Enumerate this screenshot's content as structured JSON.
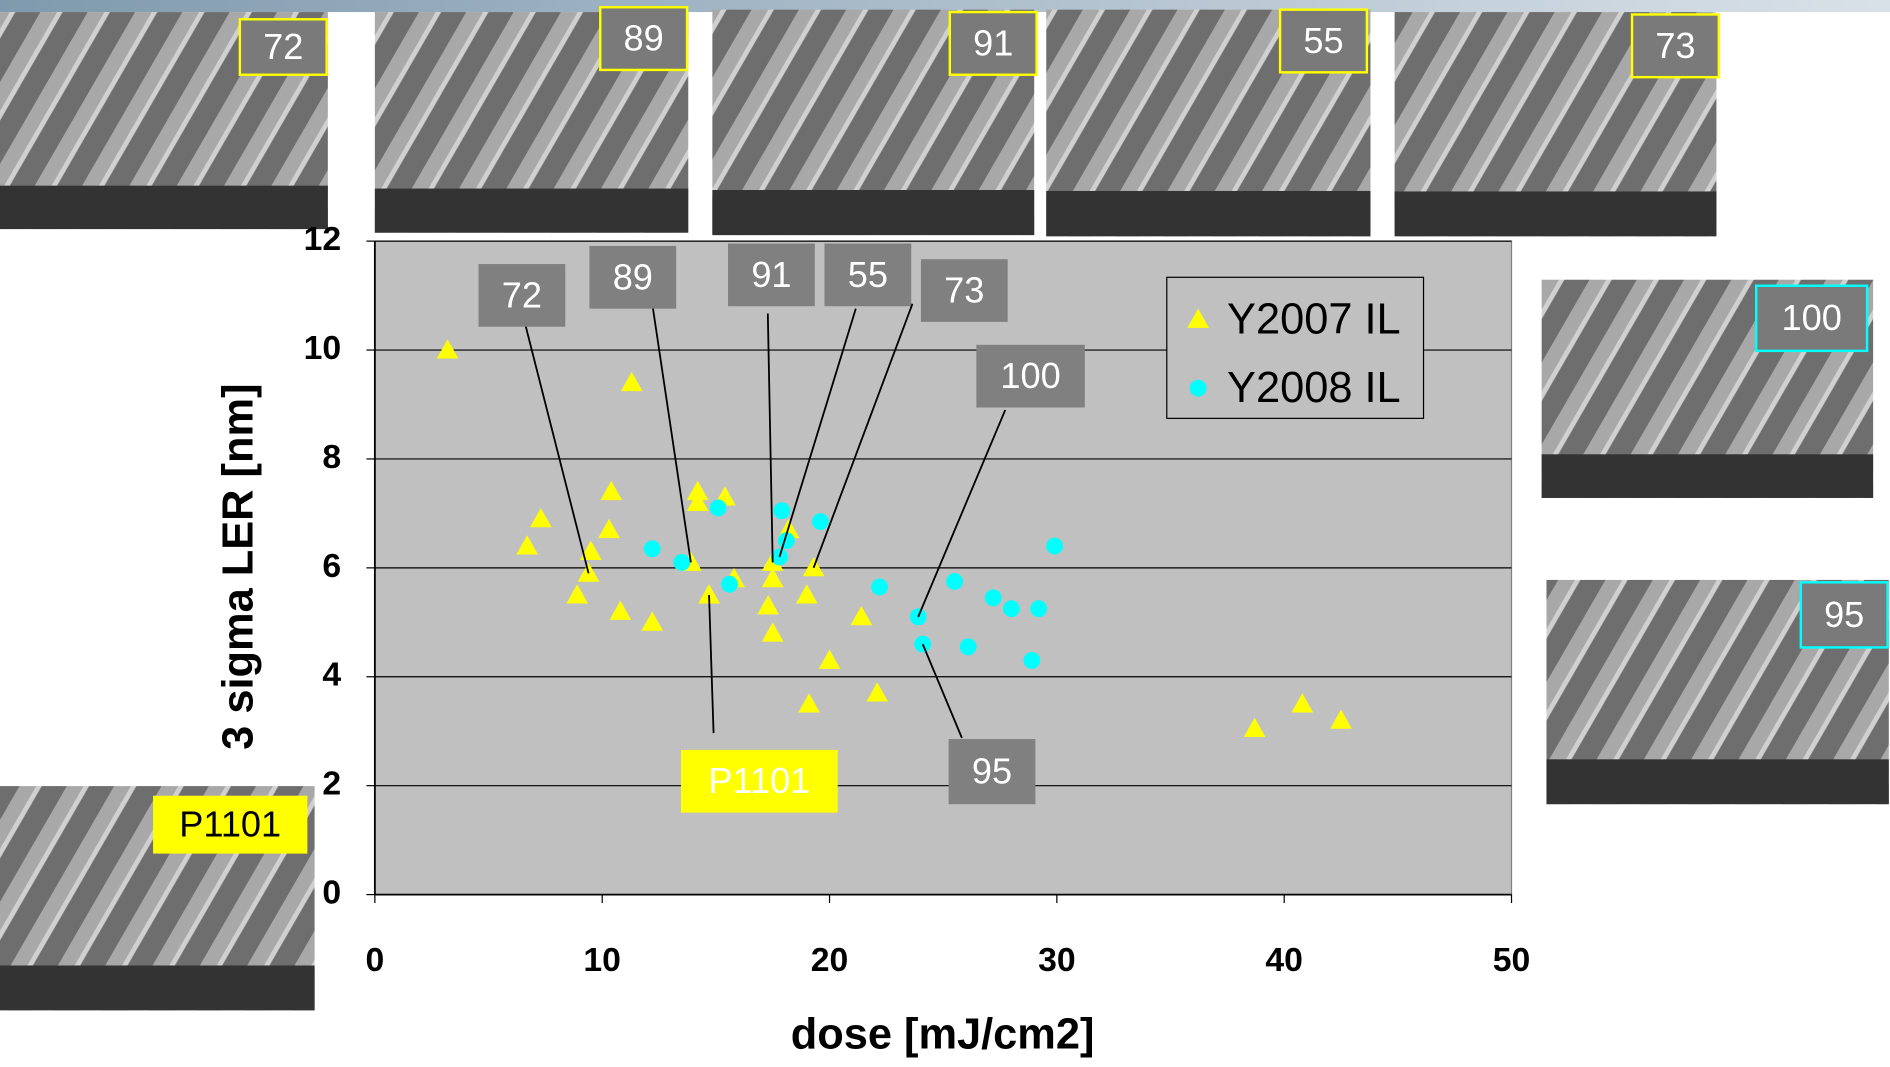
{
  "chart_data": {
    "type": "scatter",
    "x_label": "dose [mJ/cm2]",
    "y_label": "3 sigma LER [nm]",
    "xlim": [
      0,
      50
    ],
    "xticks": [
      0,
      10,
      20,
      30,
      40,
      50
    ],
    "ylim": [
      0,
      12
    ],
    "yticks": [
      0,
      2,
      4,
      6,
      8,
      10,
      12
    ],
    "grid": "y",
    "legend": "upper right",
    "series": [
      {
        "name": "Y2007 IL",
        "color": "#ffff00",
        "marker": "triangle",
        "x": [
          3.2,
          7.3,
          6.7,
          9.5,
          9.4,
          8.9,
          10.4,
          10.3,
          11.3,
          10.8,
          12.2,
          14.2,
          14.2,
          15.4,
          13.9,
          14.7,
          15.8,
          17.3,
          17.5,
          17.5,
          18.2,
          17.5,
          19.3,
          19.0,
          19.1,
          20.0,
          21.4,
          22.1,
          38.7,
          40.8,
          42.5
        ],
        "values": [
          10.0,
          6.9,
          6.4,
          6.3,
          5.9,
          5.5,
          7.4,
          6.7,
          9.4,
          5.2,
          5.0,
          7.4,
          7.2,
          7.3,
          6.1,
          5.5,
          5.8,
          5.3,
          5.8,
          4.8,
          6.7,
          6.1,
          6.0,
          5.5,
          3.5,
          4.3,
          5.1,
          3.7,
          3.05,
          3.5,
          3.2
        ]
      },
      {
        "name": "Y2008 IL",
        "color": "#00ffff",
        "marker": "circle",
        "x": [
          12.2,
          13.5,
          15.1,
          15.6,
          17.9,
          18.1,
          17.8,
          19.6,
          22.2,
          23.9,
          24.1,
          25.5,
          26.1,
          27.2,
          28.0,
          29.2,
          28.9,
          29.9
        ],
        "values": [
          6.35,
          6.1,
          7.1,
          5.7,
          7.05,
          6.5,
          6.2,
          6.85,
          5.65,
          5.1,
          4.6,
          5.75,
          4.55,
          5.45,
          5.25,
          5.25,
          4.3,
          6.4
        ]
      }
    ],
    "annotations": [
      {
        "text": "72"
      },
      {
        "text": "89"
      },
      {
        "text": "91"
      },
      {
        "text": "55"
      },
      {
        "text": "73"
      },
      {
        "text": "100"
      },
      {
        "text": "95"
      },
      {
        "text": "P1101"
      }
    ]
  },
  "image_labels": [
    "72",
    "89",
    "91",
    "55",
    "73",
    "100",
    "95",
    "P1101"
  ]
}
